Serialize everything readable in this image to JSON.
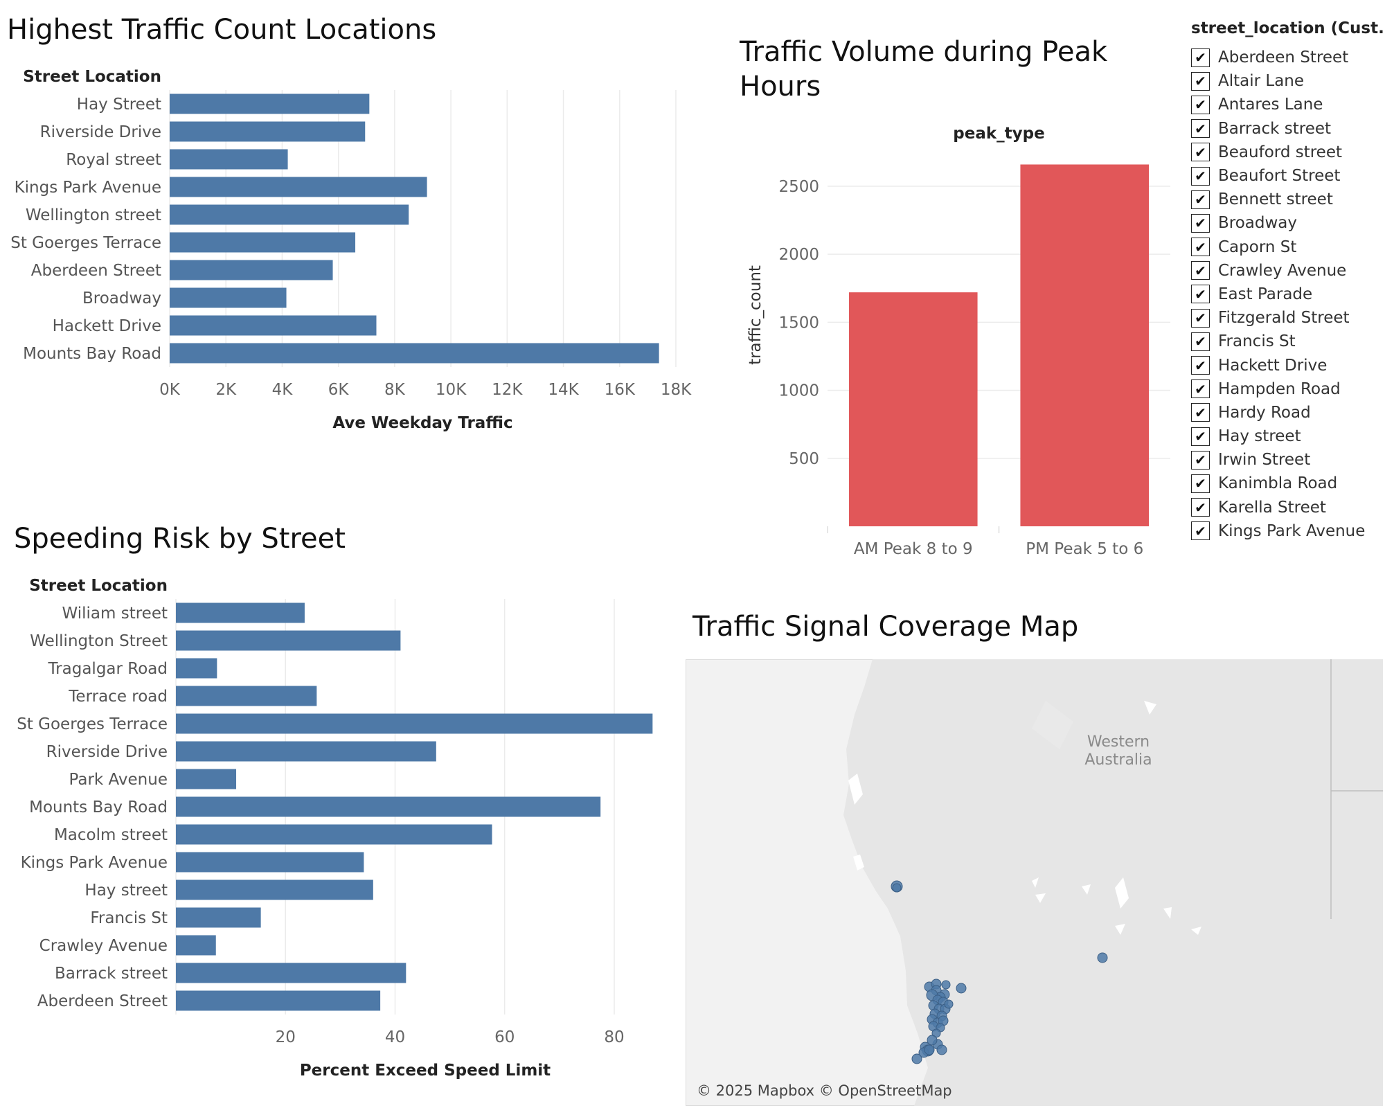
{
  "colors": {
    "bar_blue": "#4e79a7",
    "bar_red": "#e15759",
    "grid": "#ebebeb",
    "map_land": "#e7e7e7",
    "map_sea": "#f3f3f3",
    "map_dot": "#4e79a7"
  },
  "chart_data": [
    {
      "type": "bar",
      "orientation": "horizontal",
      "title": "Highest Traffic Count Locations",
      "row_header": "Street Location",
      "xlabel": "Ave Weekday Traffic",
      "xlim": [
        0,
        18000
      ],
      "xticks": [
        "0K",
        "2K",
        "4K",
        "6K",
        "8K",
        "10K",
        "12K",
        "14K",
        "16K",
        "18K"
      ],
      "categories": [
        "Hay Street",
        "Riverside Drive",
        "Royal street",
        "Kings Park Avenue",
        "Wellington street",
        "St Goerges Terrace",
        "Aberdeen Street",
        "Broadway",
        "Hackett Drive",
        "Mounts Bay Road"
      ],
      "values": [
        7100,
        6950,
        4200,
        9150,
        8500,
        6600,
        5800,
        4150,
        7350,
        17400
      ]
    },
    {
      "type": "bar",
      "orientation": "vertical",
      "title": "Traffic Volume during Peak Hours",
      "column_header": "peak_type",
      "ylabel": "traffic_count",
      "ylim": [
        0,
        2800
      ],
      "yticks": [
        500,
        1000,
        1500,
        2000,
        2500
      ],
      "categories": [
        "AM Peak 8 to 9",
        "PM Peak 5 to 6"
      ],
      "values": [
        1720,
        2660
      ]
    },
    {
      "type": "bar",
      "orientation": "horizontal",
      "title": "Speeding Risk by Street",
      "row_header": "Street Location",
      "xlabel": "Percent Exceed Speed Limit",
      "xlim": [
        0,
        91
      ],
      "xticks": [
        20,
        40,
        60,
        80
      ],
      "categories": [
        "Wiliam street",
        "Wellington Street",
        "Tragalgar Road",
        "Terrace road",
        "St Goerges Terrace",
        "Riverside Drive",
        "Park Avenue",
        "Mounts Bay Road",
        "Macolm street",
        "Kings Park Avenue",
        "Hay street",
        "Francis St",
        "Crawley Avenue",
        "Barrack street",
        "Aberdeen Street"
      ],
      "values": [
        23.5,
        41,
        7.5,
        25.7,
        87,
        47.5,
        11,
        77.5,
        57.7,
        34.3,
        36,
        15.5,
        7.3,
        42,
        37.3
      ]
    }
  ],
  "map": {
    "title": "Traffic Signal Coverage Map",
    "region_label_1": "Western",
    "region_label_2": "Australia",
    "attribution": "© 2025 Mapbox © OpenStreetMap"
  },
  "filter": {
    "title": "street_location (Cust..",
    "items": [
      "Aberdeen Street",
      "Altair Lane",
      "Antares Lane",
      "Barrack street",
      "Beauford street",
      "Beaufort  Street",
      "Bennett street",
      "Broadway",
      "Caporn St",
      "Crawley Avenue",
      "East Parade",
      "Fitzgerald Street",
      "Francis St",
      "Hackett Drive",
      "Hampden Road",
      "Hardy Road",
      "Hay street",
      "Irwin Street",
      "Kanimbla Road",
      "Karella Street",
      "Kings Park Avenue"
    ],
    "check_glyph": "✔"
  }
}
